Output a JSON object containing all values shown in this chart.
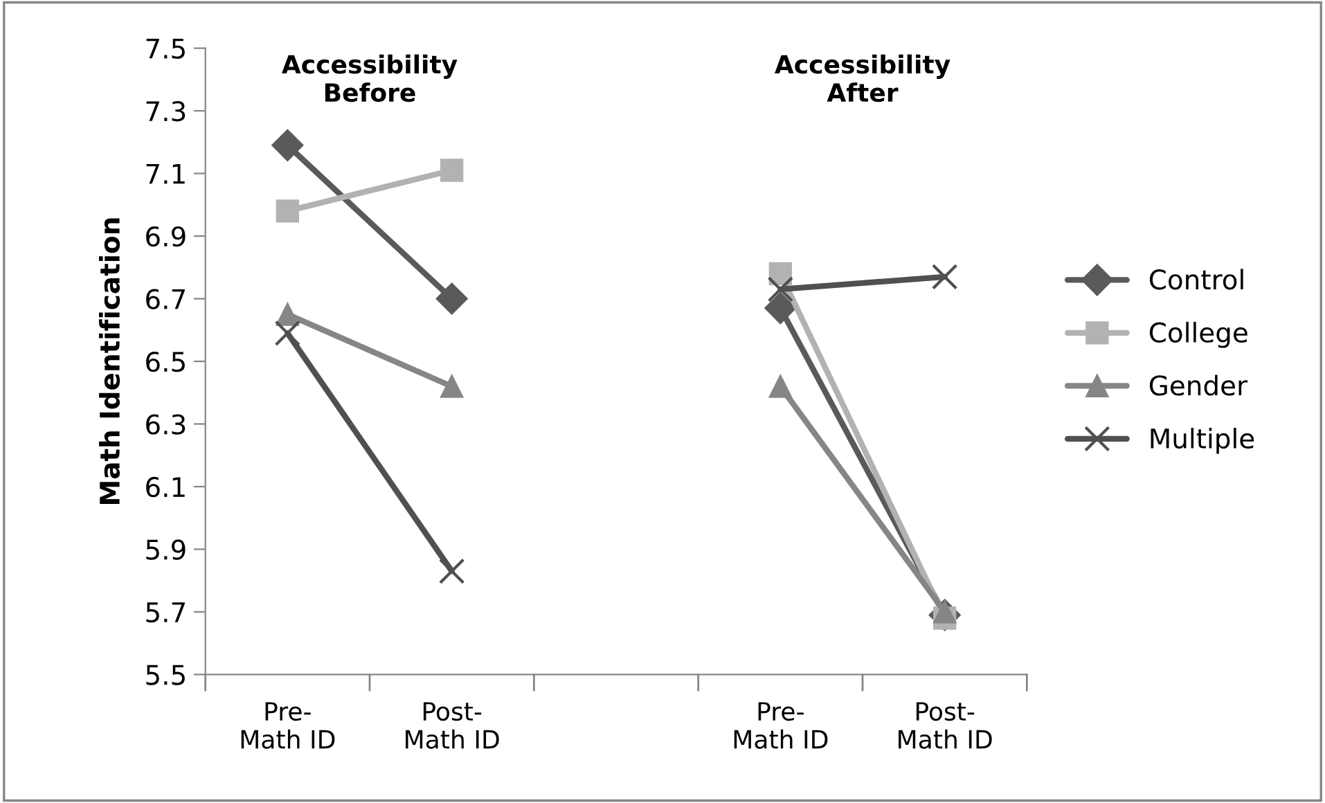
{
  "chart_data": {
    "type": "line",
    "ylabel": "Math Identification",
    "categories": [
      "Pre-\nMath ID",
      "Post-\nMath ID",
      null,
      "Pre-\nMath ID",
      "Post-\nMath ID"
    ],
    "annotations": [
      "Accessibility\nBefore",
      "Accessibility\nAfter"
    ],
    "ylim": [
      5.5,
      7.5
    ],
    "yticks": [
      5.5,
      5.7,
      5.9,
      6.1,
      6.3,
      6.5,
      6.7,
      6.9,
      7.1,
      7.3,
      7.5
    ],
    "grid": false,
    "legend": "right",
    "line_style": "solid",
    "series": [
      {
        "name": "Control",
        "color": "#5a5a5a",
        "marker": "diamond",
        "values": [
          7.19,
          6.7,
          null,
          6.67,
          5.69
        ]
      },
      {
        "name": "College",
        "color": "#b2b2b2",
        "marker": "square",
        "values": [
          6.98,
          7.11,
          null,
          6.78,
          5.68
        ]
      },
      {
        "name": "Gender",
        "color": "#868686",
        "marker": "triangle",
        "values": [
          6.65,
          6.42,
          null,
          6.42,
          5.7
        ]
      },
      {
        "name": "Multiple",
        "color": "#505050",
        "marker": "cross",
        "values": [
          6.59,
          5.83,
          null,
          6.73,
          6.77
        ]
      }
    ]
  }
}
